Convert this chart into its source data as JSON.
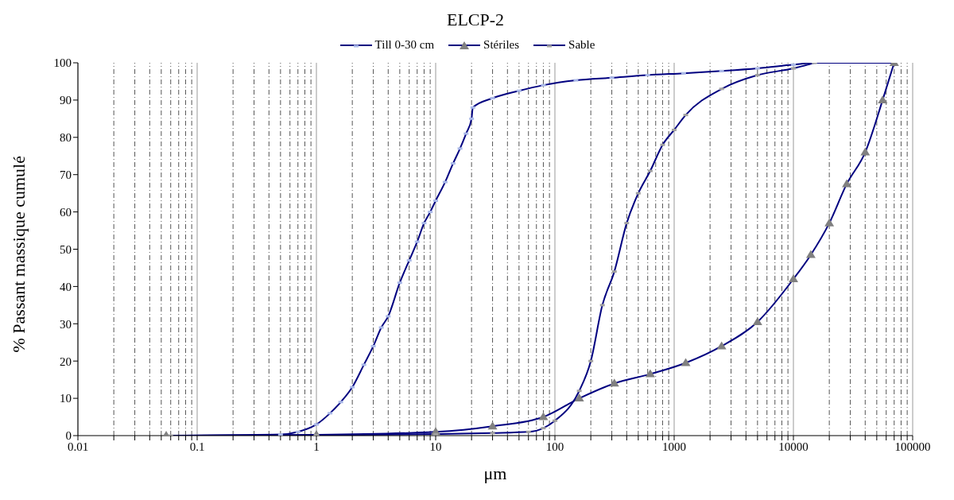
{
  "chart_data": {
    "type": "line",
    "title": "ELCP-2",
    "xlabel": "μm",
    "ylabel": "% Passant massique cumulé",
    "log": "x",
    "grid": "x",
    "legend": "top",
    "line_style": "solid",
    "xlim": [
      0.01,
      100000
    ],
    "ylim": [
      0,
      100
    ],
    "yticks": [
      0,
      10,
      20,
      30,
      40,
      50,
      60,
      70,
      80,
      90,
      100
    ],
    "xticks": [
      0.01,
      {
        "value": 0.02,
        "label": null
      },
      {
        "value": 0.03,
        "label": null
      },
      {
        "value": 0.04,
        "label": null
      },
      {
        "value": 0.05,
        "label": null
      },
      {
        "value": 0.06,
        "label": null
      },
      {
        "value": 0.07,
        "label": null
      },
      {
        "value": 0.08,
        "label": null
      },
      {
        "value": 0.09,
        "label": null
      },
      0.1,
      {
        "value": 0.2,
        "label": null
      },
      {
        "value": 0.3,
        "label": null
      },
      {
        "value": 0.4,
        "label": null
      },
      {
        "value": 0.5,
        "label": null
      },
      {
        "value": 0.6,
        "label": null
      },
      {
        "value": 0.7,
        "label": null
      },
      {
        "value": 0.8,
        "label": null
      },
      {
        "value": 0.9,
        "label": null
      },
      1,
      {
        "value": 2,
        "label": null
      },
      {
        "value": 3,
        "label": null
      },
      {
        "value": 4,
        "label": null
      },
      {
        "value": 5,
        "label": null
      },
      {
        "value": 6,
        "label": null
      },
      {
        "value": 7,
        "label": null
      },
      {
        "value": 8,
        "label": null
      },
      {
        "value": 9,
        "label": null
      },
      10,
      {
        "value": 20,
        "label": null
      },
      {
        "value": 30,
        "label": null
      },
      {
        "value": 40,
        "label": null
      },
      {
        "value": 50,
        "label": null
      },
      {
        "value": 60,
        "label": null
      },
      {
        "value": 70,
        "label": null
      },
      {
        "value": 80,
        "label": null
      },
      {
        "value": 90,
        "label": null
      },
      100,
      {
        "value": 200,
        "label": null
      },
      {
        "value": 300,
        "label": null
      },
      {
        "value": 400,
        "label": null
      },
      {
        "value": 500,
        "label": null
      },
      {
        "value": 600,
        "label": null
      },
      {
        "value": 700,
        "label": null
      },
      {
        "value": 800,
        "label": null
      },
      {
        "value": 900,
        "label": null
      },
      1000,
      {
        "value": 2000,
        "label": null
      },
      {
        "value": 3000,
        "label": null
      },
      {
        "value": 4000,
        "label": null
      },
      {
        "value": 5000,
        "label": null
      },
      {
        "value": 6000,
        "label": null
      },
      {
        "value": 7000,
        "label": null
      },
      {
        "value": 8000,
        "label": null
      },
      {
        "value": 9000,
        "label": null
      },
      10000,
      {
        "value": 20000,
        "label": null
      },
      {
        "value": 30000,
        "label": null
      },
      {
        "value": 40000,
        "label": null
      },
      {
        "value": 50000,
        "label": null
      },
      {
        "value": 60000,
        "label": null
      },
      {
        "value": 70000,
        "label": null
      },
      {
        "value": 80000,
        "label": null
      },
      {
        "value": 90000,
        "label": null
      },
      100000
    ],
    "series": [
      {
        "name": "Till 0-30 cm",
        "color": "#000080",
        "marker": "square",
        "x": [
          0.055,
          0.5,
          0.7,
          1,
          1.3,
          1.6,
          2,
          2.5,
          3,
          3.5,
          4,
          5,
          6,
          7,
          8,
          9,
          10,
          12,
          14,
          16,
          18,
          20,
          20.5,
          30,
          50,
          80,
          150,
          300,
          600,
          1200,
          2500,
          5000,
          10000,
          15000,
          70000
        ],
        "values": [
          0,
          0.3,
          1,
          3,
          6,
          9,
          13,
          19,
          24,
          29,
          32,
          41,
          47,
          52,
          57,
          60,
          63,
          68,
          73,
          77,
          81,
          85,
          88,
          90.5,
          92.5,
          94,
          95.3,
          96,
          96.7,
          97.2,
          97.8,
          98.5,
          99.5,
          100,
          100
        ]
      },
      {
        "name": "Stériles",
        "color": "#000080",
        "marker": "triangle",
        "x": [
          0.055,
          1,
          10,
          30,
          80,
          160,
          315,
          630,
          1250,
          2500,
          5000,
          10000,
          14000,
          20000,
          28000,
          40000,
          56000,
          70000
        ],
        "values": [
          0,
          0.2,
          1,
          2.5,
          5,
          10,
          14,
          16.5,
          19.5,
          24,
          30.5,
          42,
          48.5,
          57,
          67.5,
          76,
          90,
          100
        ]
      },
      {
        "name": "Sable",
        "color": "#000080",
        "marker": "square",
        "x": [
          0.06,
          1,
          10,
          30,
          60,
          80,
          100,
          160,
          200,
          250,
          315,
          400,
          500,
          630,
          800,
          1000,
          1250,
          2500,
          5000,
          10000,
          15000
        ],
        "values": [
          0,
          0.1,
          0.4,
          0.7,
          1,
          2,
          4,
          12,
          20,
          35,
          44,
          57,
          65,
          71,
          78,
          82,
          86,
          93,
          96.7,
          98.5,
          100
        ]
      }
    ]
  }
}
